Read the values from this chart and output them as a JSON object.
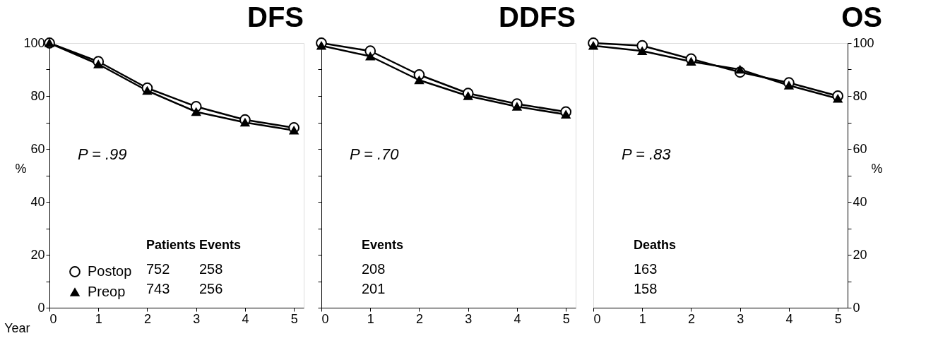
{
  "chart_data": [
    {
      "type": "line",
      "title": "DFS",
      "xlabel": "Year",
      "ylabel": "%",
      "x": [
        0,
        1,
        2,
        3,
        4,
        5
      ],
      "xlim": [
        0,
        5.2
      ],
      "xticks": [
        0,
        1,
        2,
        3,
        4,
        5
      ],
      "ylim": [
        0,
        100
      ],
      "yticks": [
        0,
        {
          "value": 10,
          "label": null
        },
        20,
        {
          "value": 30,
          "label": null
        },
        40,
        {
          "value": 50,
          "label": null
        },
        60,
        {
          "value": 70,
          "label": null
        },
        80,
        {
          "value": 90,
          "label": null
        },
        100
      ],
      "grid": false,
      "legend": "bottom left",
      "annotations": [
        "P = .99",
        "Patients",
        "Events",
        "752",
        "258",
        "743",
        "256"
      ],
      "series": [
        {
          "name": "Postop",
          "color": "#000000",
          "marker": "circle",
          "values": [
            100,
            93,
            83,
            76,
            71,
            68
          ]
        },
        {
          "name": "Preop",
          "color": "#000000",
          "marker": "triangle",
          "values": [
            100,
            92,
            82,
            74,
            70,
            67
          ]
        }
      ]
    },
    {
      "type": "line",
      "title": "DDFS",
      "x": [
        0,
        1,
        2,
        3,
        4,
        5
      ],
      "xlim": [
        0,
        5.2
      ],
      "xticks": [
        0,
        1,
        2,
        3,
        4,
        5
      ],
      "ylim": [
        0,
        100
      ],
      "yticks": [
        0,
        10,
        20,
        30,
        40,
        50,
        60,
        70,
        80,
        90,
        100
      ],
      "tick_labels": "x",
      "grid": false,
      "legend": "bottom left",
      "annotations": [
        "P = .70",
        "Events",
        "208",
        "201"
      ],
      "series": [
        {
          "color": "#000000",
          "marker": "circle",
          "values": [
            100,
            97,
            88,
            81,
            77,
            74
          ]
        },
        {
          "color": "#000000",
          "marker": "triangle",
          "values": [
            99,
            95,
            86,
            80,
            76,
            73
          ]
        }
      ]
    },
    {
      "type": "line",
      "title": "OS",
      "ylabel": "%",
      "x": [
        0,
        1,
        2,
        3,
        4,
        5
      ],
      "xlim": [
        0,
        5.2
      ],
      "xticks": [
        0,
        1,
        2,
        3,
        4,
        5
      ],
      "ylim": [
        0,
        100
      ],
      "yticks": [
        0,
        {
          "value": 10,
          "label": null
        },
        20,
        {
          "value": 30,
          "label": null
        },
        40,
        {
          "value": 50,
          "label": null
        },
        60,
        {
          "value": 70,
          "label": null
        },
        80,
        {
          "value": 90,
          "label": null
        },
        100
      ],
      "grid": false,
      "legend": "bottom left",
      "annotations": [
        "P = .83",
        "Deaths",
        "163",
        "158"
      ],
      "series": [
        {
          "color": "#000000",
          "marker": "circle",
          "values": [
            100,
            99,
            94,
            89,
            85,
            80
          ]
        },
        {
          "color": "#000000",
          "marker": "triangle",
          "values": [
            99,
            97,
            93,
            90,
            84,
            79
          ]
        }
      ]
    }
  ]
}
